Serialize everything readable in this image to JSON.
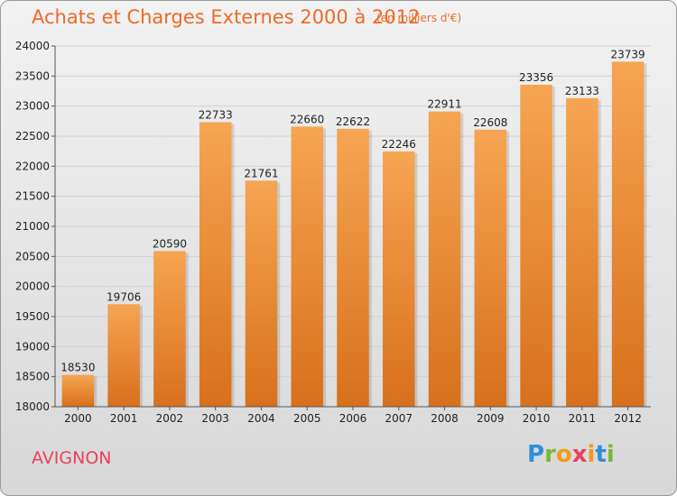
{
  "header": {
    "title": "Achats et Charges Externes 2000 à 2012",
    "unit": "(en milliers d'€)"
  },
  "footer": {
    "city": "AVIGNON",
    "logo": [
      "P",
      "r",
      "o",
      "x",
      "i",
      "t",
      "i"
    ],
    "logo_colors": [
      "#2f8fd6",
      "#79b83a",
      "#f29a1e",
      "#e8425d",
      "#f29a1e",
      "#2f8fd6",
      "#79b83a"
    ]
  },
  "chart_data": {
    "type": "bar",
    "title": "Achats et Charges Externes 2000 à 2012",
    "subtitle": "(en milliers d'€)",
    "categories": [
      "2000",
      "2001",
      "2002",
      "2003",
      "2004",
      "2005",
      "2006",
      "2007",
      "2008",
      "2009",
      "2010",
      "2011",
      "2012"
    ],
    "values": [
      18530,
      19706,
      20590,
      22733,
      21761,
      22660,
      22622,
      22246,
      22911,
      22608,
      23356,
      23133,
      23739
    ],
    "ylim": [
      18000,
      24000
    ],
    "yticks": [
      18000,
      18500,
      19000,
      19500,
      20000,
      20500,
      21000,
      21500,
      22000,
      22500,
      23000,
      23500,
      24000
    ],
    "xlabel": "",
    "ylabel": "",
    "grid": true,
    "legend": "none",
    "bar_color_top": "#f6a552",
    "bar_color_bottom": "#d8701c",
    "grid_color": "#d0d0d0"
  }
}
